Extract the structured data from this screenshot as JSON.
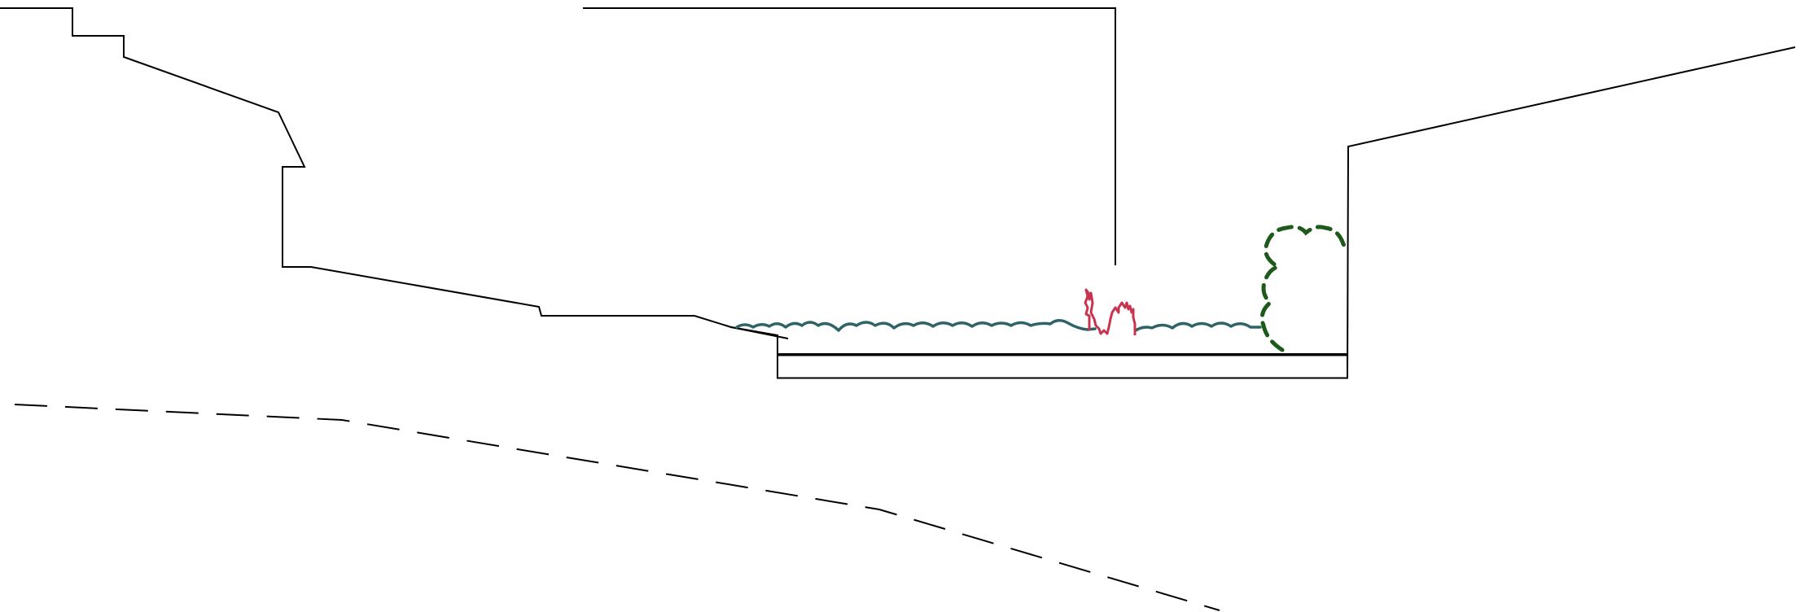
{
  "drawing": {
    "colors": {
      "background": "#ffffff",
      "outline": "#000000",
      "groundcover": "#2f6467",
      "shrub_canopy": "#1f5a1d",
      "flowering_plant": "#c8344f"
    },
    "icons": {
      "groundcover": "groundcover-planting-icon",
      "shrub": "shrub-canopy-icon",
      "flower": "flowering-plant-icon"
    }
  }
}
